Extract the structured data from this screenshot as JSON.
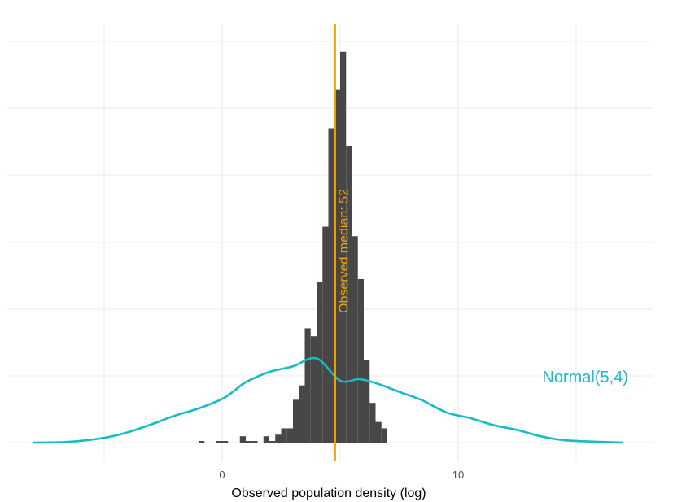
{
  "chart_data": {
    "type": "histogram",
    "title": "",
    "xlabel": "Observed population density (log)",
    "ylabel": "",
    "xlim": [
      -8,
      18
    ],
    "ylim": [
      0,
      1
    ],
    "x_ticks": [
      0,
      10
    ],
    "grid": true,
    "colors": {
      "bars": "#474747",
      "median": "#F5A300",
      "normal": "#15BCC4",
      "grid": "#ebebeb"
    },
    "histogram": {
      "bin_width": 0.25,
      "bins": [
        {
          "x0": -1.0,
          "y": 0.004
        },
        {
          "x0": -0.25,
          "y": 0.004
        },
        {
          "x0": 0.0,
          "y": 0.004
        },
        {
          "x0": 0.75,
          "y": 0.016
        },
        {
          "x0": 1.0,
          "y": 0.004
        },
        {
          "x0": 1.25,
          "y": 0.004
        },
        {
          "x0": 1.75,
          "y": 0.016
        },
        {
          "x0": 2.0,
          "y": 0.004
        },
        {
          "x0": 2.25,
          "y": 0.02
        },
        {
          "x0": 2.5,
          "y": 0.036
        },
        {
          "x0": 2.75,
          "y": 0.036
        },
        {
          "x0": 3.0,
          "y": 0.108
        },
        {
          "x0": 3.25,
          "y": 0.144
        },
        {
          "x0": 3.5,
          "y": 0.288
        },
        {
          "x0": 3.75,
          "y": 0.268
        },
        {
          "x0": 4.0,
          "y": 0.404
        },
        {
          "x0": 4.25,
          "y": 0.544
        },
        {
          "x0": 4.5,
          "y": 0.792
        },
        {
          "x0": 4.75,
          "y": 0.888
        },
        {
          "x0": 5.0,
          "y": 0.984
        },
        {
          "x0": 5.25,
          "y": 0.748
        },
        {
          "x0": 5.5,
          "y": 0.52
        },
        {
          "x0": 5.75,
          "y": 0.412
        },
        {
          "x0": 6.0,
          "y": 0.208
        },
        {
          "x0": 6.25,
          "y": 0.1
        },
        {
          "x0": 6.5,
          "y": 0.052
        },
        {
          "x0": 6.75,
          "y": 0.036
        }
      ]
    },
    "normal_curve": {
      "label": "Normal(5,4)",
      "points": [
        [
          -8,
          0.0
        ],
        [
          -6.5,
          0.002
        ],
        [
          -5,
          0.012
        ],
        [
          -4,
          0.026
        ],
        [
          -3,
          0.046
        ],
        [
          -2,
          0.068
        ],
        [
          -1,
          0.086
        ],
        [
          0,
          0.11
        ],
        [
          0.5,
          0.13
        ],
        [
          1,
          0.152
        ],
        [
          2,
          0.178
        ],
        [
          3,
          0.192
        ],
        [
          4,
          0.212
        ],
        [
          5,
          0.156
        ],
        [
          5.8,
          0.16
        ],
        [
          6.5,
          0.15
        ],
        [
          7.5,
          0.128
        ],
        [
          8.5,
          0.106
        ],
        [
          9.5,
          0.076
        ],
        [
          10.5,
          0.062
        ],
        [
          11.5,
          0.044
        ],
        [
          12.5,
          0.032
        ],
        [
          13.5,
          0.016
        ],
        [
          14.5,
          0.006
        ],
        [
          16,
          0.002
        ],
        [
          17,
          0.0
        ]
      ]
    },
    "median": {
      "x": 4.78,
      "label": "Observed median: 52"
    }
  }
}
